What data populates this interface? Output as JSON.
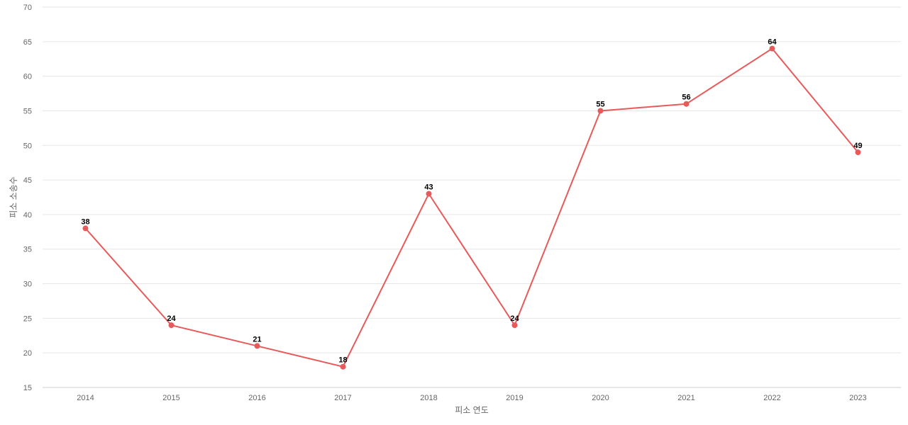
{
  "chart_data": {
    "type": "line",
    "title": "",
    "xlabel": "피소 연도",
    "ylabel": "피소 소송수",
    "categories": [
      "2014",
      "2015",
      "2016",
      "2017",
      "2018",
      "2019",
      "2020",
      "2021",
      "2022",
      "2023"
    ],
    "series": [
      {
        "values": [
          38,
          24,
          21,
          18,
          43,
          24,
          55,
          56,
          64,
          49
        ],
        "color": "#e8595a"
      }
    ],
    "ylim": [
      15,
      70
    ],
    "yticks": [
      15,
      20,
      25,
      30,
      35,
      40,
      45,
      50,
      55,
      60,
      65,
      70
    ],
    "grid": true,
    "data_labels": true,
    "legend": "none"
  }
}
